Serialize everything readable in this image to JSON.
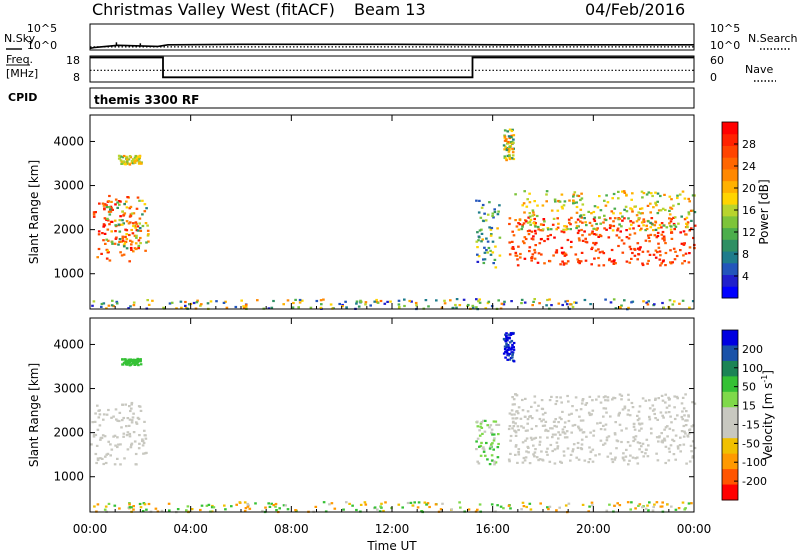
{
  "header": {
    "station": "Christmas Valley West (fitACF)",
    "beam": "Beam 13",
    "date": "04/Feb/2016"
  },
  "side_labels": {
    "nsky": "N.Sky",
    "nsearch": "N.Search",
    "freq_line1": "Freq.",
    "freq_line2": "[MHz]",
    "nave": "Nave",
    "cpid": "CPID",
    "cpid_value": "themis 3300 RF"
  },
  "chart_data": [
    {
      "type": "line",
      "name": "noise-panel",
      "left_ticks": [
        "10^5",
        "10^0"
      ],
      "right_ticks": [
        "10^5",
        "10^0"
      ],
      "ylim": [
        0,
        5
      ],
      "x_range_hours": [
        0,
        24
      ],
      "series": [
        {
          "name": "N.Sky",
          "style": "solid",
          "points": [
            [
              0,
              0.3
            ],
            [
              0.2,
              0.5
            ],
            [
              1.1,
              0.9
            ],
            [
              2.7,
              0.7
            ],
            [
              3.1,
              1.0
            ],
            [
              6,
              1.1
            ],
            [
              12,
              1.1
            ],
            [
              16.5,
              1.0
            ],
            [
              20,
              1.0
            ],
            [
              24,
              1.0
            ]
          ]
        },
        {
          "name": "N.Search",
          "style": "dotted",
          "points": [
            [
              0,
              0.6
            ],
            [
              24,
              0.6
            ]
          ]
        }
      ]
    },
    {
      "type": "line",
      "name": "frequency-panel",
      "left_ticks": [
        "18",
        "8"
      ],
      "right_ticks": [
        "60",
        "0"
      ],
      "left_ylim": [
        8,
        18
      ],
      "right_ylim": [
        0,
        60
      ],
      "series": [
        {
          "name": "Freq. [MHz]",
          "style": "solid",
          "points": [
            [
              0,
              18
            ],
            [
              2.9,
              18
            ],
            [
              2.9,
              9.8
            ],
            [
              15.2,
              9.8
            ],
            [
              15.2,
              18
            ],
            [
              24,
              18
            ]
          ]
        },
        {
          "name": "Nave",
          "style": "dotted",
          "points": [
            [
              0,
              27
            ],
            [
              24,
              27
            ]
          ]
        }
      ]
    },
    {
      "type": "heatmap",
      "name": "power-panel",
      "ylabel": "Slant Range [km]",
      "yticks": [
        1000,
        2000,
        3000,
        4000
      ],
      "ylim": [
        200,
        4600
      ],
      "colorbar": {
        "label": "Power [dB]",
        "ticks": [
          4,
          8,
          12,
          16,
          20,
          24,
          28
        ],
        "range": [
          0,
          32
        ],
        "colors": [
          "#0000ff",
          "#2020cc",
          "#2255bb",
          "#1e7c8c",
          "#2e8f63",
          "#4cae4c",
          "#7dc43a",
          "#b8d42d",
          "#ffd400",
          "#ffb100",
          "#ff8800",
          "#ff6600",
          "#ff4400",
          "#ff2200",
          "#ff0000"
        ]
      },
      "regions": [
        {
          "t": [
            0.1,
            1.9
          ],
          "r": [
            1300,
            2800
          ],
          "v": [
            22,
            31
          ]
        },
        {
          "t": [
            0.6,
            2.3
          ],
          "r": [
            1500,
            2700
          ],
          "v": [
            8,
            26
          ]
        },
        {
          "t": [
            1.1,
            2.0
          ],
          "r": [
            3500,
            3700
          ],
          "v": [
            10,
            22
          ]
        },
        {
          "t": [
            15.3,
            16.3
          ],
          "r": [
            1100,
            2700
          ],
          "v": [
            4,
            20
          ]
        },
        {
          "t": [
            16.4,
            16.8
          ],
          "r": [
            3600,
            4300
          ],
          "v": [
            8,
            26
          ]
        },
        {
          "t": [
            16.6,
            24.0
          ],
          "r": [
            1200,
            2300
          ],
          "v": [
            24,
            31
          ]
        },
        {
          "t": [
            16.8,
            24.0
          ],
          "r": [
            2000,
            2900
          ],
          "v": [
            10,
            24
          ]
        },
        {
          "t": [
            0.0,
            24.0
          ],
          "r": [
            220,
            450
          ],
          "v": [
            2,
            24
          ]
        }
      ]
    },
    {
      "type": "heatmap",
      "name": "velocity-panel",
      "ylabel": "Slant Range [km]",
      "yticks": [
        1000,
        2000,
        3000,
        4000
      ],
      "ylim": [
        200,
        4600
      ],
      "xticks": [
        "00:00",
        "04:00",
        "08:00",
        "12:00",
        "16:00",
        "20:00",
        "00:00"
      ],
      "xlabel": "Time UT",
      "colorbar": {
        "label": "Velocity [m s-1]",
        "ticks": [
          200,
          100,
          50,
          15,
          -15,
          -50,
          -100,
          -200
        ],
        "colors": [
          "#0000e0",
          "#1a52a8",
          "#1b8455",
          "#35c135",
          "#7fd94a",
          "#c8c8c0",
          "#c8c8c0",
          "#f0c000",
          "#ff9900",
          "#ff5500",
          "#ff0000"
        ]
      },
      "regions": [
        {
          "t": [
            0.0,
            2.2
          ],
          "r": [
            1300,
            2700
          ],
          "v": [
            0,
            0
          ]
        },
        {
          "t": [
            1.2,
            2.0
          ],
          "r": [
            3550,
            3700
          ],
          "v": [
            30,
            60
          ]
        },
        {
          "t": [
            15.3,
            16.2
          ],
          "r": [
            1300,
            2300
          ],
          "v": [
            0,
            40
          ]
        },
        {
          "t": [
            16.4,
            16.8
          ],
          "r": [
            3600,
            4300
          ],
          "v": [
            120,
            250
          ]
        },
        {
          "t": [
            16.6,
            24.0
          ],
          "r": [
            1300,
            2900
          ],
          "v": [
            0,
            0
          ]
        },
        {
          "t": [
            0.0,
            24.0
          ],
          "r": [
            220,
            450
          ],
          "v": [
            -60,
            60
          ]
        }
      ]
    }
  ]
}
